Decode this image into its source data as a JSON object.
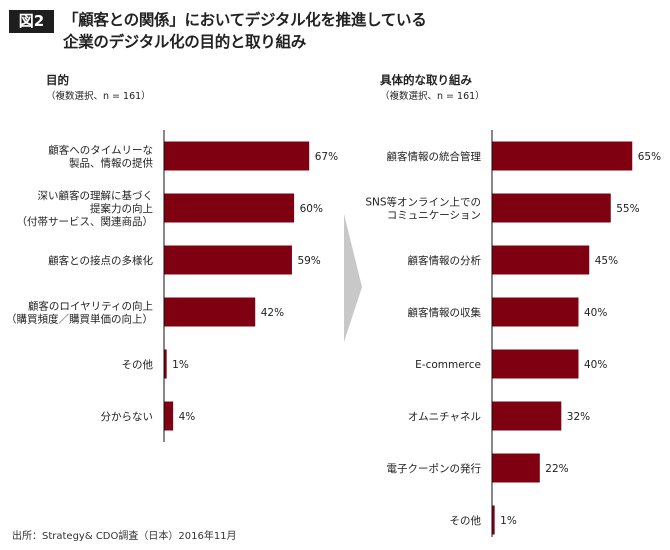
{
  "figure": {
    "badge": "図2",
    "title_line1": "「顧客との関係」においてデジタル化を推進している",
    "title_line2": "企業のデジタル化の目的と取り組み",
    "source": "出所：Strategy& CDO調査（日本）2016年11月",
    "bar_color": "#7f0011",
    "arrow_color": "#c8c8c8"
  },
  "chart_data": [
    {
      "type": "bar",
      "orientation": "horizontal",
      "title": "目的",
      "subtitle": "（複数選択、n = 161）",
      "unit": "%",
      "xlim": [
        0,
        100
      ],
      "grid": false,
      "categories": [
        [
          "顧客へのタイムリーな",
          "製品、情報の提供"
        ],
        [
          "深い顧客の理解に基づく",
          "提案力の向上",
          "（付帯サービス、関連商品）"
        ],
        [
          "顧客との接点の多様化"
        ],
        [
          "顧客のロイヤリティの向上",
          "（購買頻度／購買単価の向上）"
        ],
        [
          "その他"
        ],
        [
          "分からない"
        ]
      ],
      "values": [
        67,
        60,
        59,
        42,
        1,
        4
      ],
      "value_labels": [
        "67%",
        "60%",
        "59%",
        "42%",
        "1%",
        "4%"
      ]
    },
    {
      "type": "bar",
      "orientation": "horizontal",
      "title": "具体的な取り組み",
      "subtitle": "（複数選択、n = 161）",
      "unit": "%",
      "xlim": [
        0,
        100
      ],
      "grid": false,
      "categories": [
        [
          "顧客情報の統合管理"
        ],
        [
          "SNS等オンライン上での",
          "コミュニケーション"
        ],
        [
          "顧客情報の分析"
        ],
        [
          "顧客情報の収集"
        ],
        [
          "E-commerce"
        ],
        [
          "オムニチャネル"
        ],
        [
          "電子クーポンの発行"
        ],
        [
          "その他"
        ]
      ],
      "values": [
        65,
        55,
        45,
        40,
        40,
        32,
        22,
        1
      ],
      "value_labels": [
        "65%",
        "55%",
        "45%",
        "40%",
        "40%",
        "32%",
        "22%",
        "1%"
      ]
    }
  ]
}
